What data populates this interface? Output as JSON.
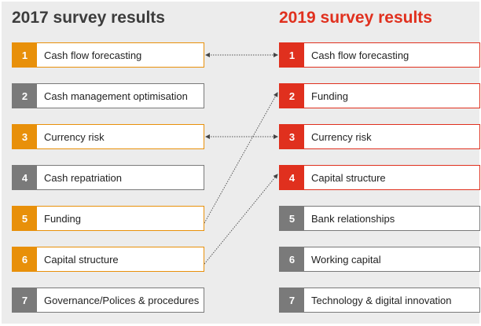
{
  "left": {
    "title": "2017 survey results",
    "items": [
      {
        "n": "1",
        "label": "Cash flow forecasting",
        "color": "#e8900a"
      },
      {
        "n": "2",
        "label": "Cash management optimisation",
        "color": "#7a7a7a"
      },
      {
        "n": "3",
        "label": "Currency risk",
        "color": "#e8900a"
      },
      {
        "n": "4",
        "label": "Cash repatriation",
        "color": "#7a7a7a"
      },
      {
        "n": "5",
        "label": "Funding",
        "color": "#e8900a"
      },
      {
        "n": "6",
        "label": "Capital structure",
        "color": "#e8900a"
      },
      {
        "n": "7",
        "label": "Governance/Polices & procedures",
        "color": "#7a7a7a"
      }
    ]
  },
  "right": {
    "title": "2019 survey results",
    "items": [
      {
        "n": "1",
        "label": "Cash flow forecasting",
        "color": "#e0301e"
      },
      {
        "n": "2",
        "label": "Funding",
        "color": "#e0301e"
      },
      {
        "n": "3",
        "label": "Currency risk",
        "color": "#e0301e"
      },
      {
        "n": "4",
        "label": "Capital structure",
        "color": "#e0301e"
      },
      {
        "n": "5",
        "label": "Bank relationships",
        "color": "#7a7a7a"
      },
      {
        "n": "6",
        "label": "Working capital",
        "color": "#7a7a7a"
      },
      {
        "n": "7",
        "label": "Technology & digital innovation",
        "color": "#7a7a7a"
      }
    ]
  },
  "links": [
    {
      "from": 1,
      "to": 1,
      "both": true
    },
    {
      "from": 3,
      "to": 3,
      "both": true
    },
    {
      "from": 5,
      "to": 2,
      "both": false
    },
    {
      "from": 6,
      "to": 4,
      "both": false
    }
  ]
}
